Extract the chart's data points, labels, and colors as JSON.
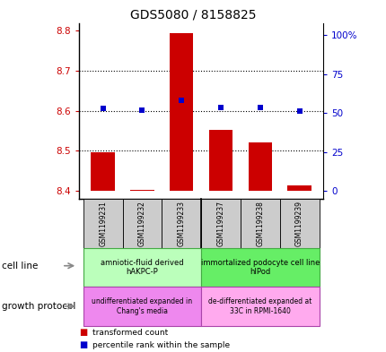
{
  "title": "GDS5080 / 8158825",
  "samples": [
    "GSM1199231",
    "GSM1199232",
    "GSM1199233",
    "GSM1199237",
    "GSM1199238",
    "GSM1199239"
  ],
  "bar_values": [
    8.497,
    8.402,
    8.795,
    8.553,
    8.522,
    8.413
  ],
  "bar_base": 8.4,
  "percentile_values": [
    53.0,
    52.0,
    58.0,
    53.5,
    53.5,
    51.5
  ],
  "ylim_left": [
    8.38,
    8.82
  ],
  "ylim_right": [
    -5,
    108
  ],
  "yticks_left": [
    8.4,
    8.5,
    8.6,
    8.7,
    8.8
  ],
  "yticks_right": [
    0,
    25,
    50,
    75,
    100
  ],
  "bar_color": "#cc0000",
  "dot_color": "#0000cc",
  "cell_line_group1_label": "amniotic-fluid derived\nhAKPC-P",
  "cell_line_group2_label": "immortalized podocyte cell line\nhIPod",
  "cell_line_group1_color": "#bbffbb",
  "cell_line_group2_color": "#66ee66",
  "growth_proto_group1_label": "undifferentiated expanded in\nChang's media",
  "growth_proto_group2_label": "de-differentiated expanded at\n33C in RPMI-1640",
  "growth_proto_group1_color": "#ee88ee",
  "growth_proto_group2_color": "#ffaaee",
  "cell_line_label": "cell line",
  "growth_protocol_label": "growth protocol",
  "legend_bar_label": "transformed count",
  "legend_dot_label": "percentile rank within the sample",
  "tick_label_color_left": "#cc0000",
  "tick_label_color_right": "#0000cc",
  "sample_box_color": "#cccccc",
  "grid_yticks": [
    8.5,
    8.6,
    8.7
  ]
}
